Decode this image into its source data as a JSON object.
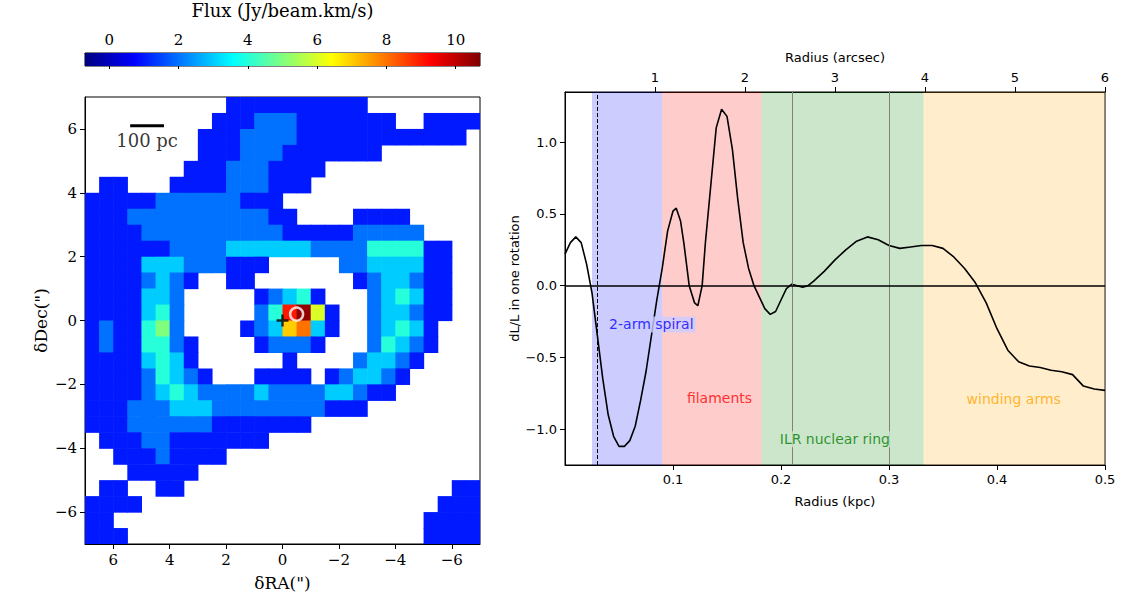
{
  "chart_data": [
    {
      "type": "heatmap",
      "x_label": "δRA(\")",
      "y_label": "δDec(\")",
      "xlim": [
        7,
        -7
      ],
      "ylim": [
        -7,
        7
      ],
      "xticks": [
        6,
        4,
        2,
        0,
        {
          "value": -2,
          "label": "−2"
        },
        {
          "value": -4,
          "label": "−4"
        },
        {
          "value": -6,
          "label": "−6"
        }
      ],
      "yticks": [
        {
          "value": -6,
          "label": "−6"
        },
        {
          "value": -4,
          "label": "−4"
        },
        {
          "value": -2,
          "label": "−2"
        },
        0,
        2,
        4,
        6
      ],
      "colorbar": {
        "label": "Flux (Jy/beam.km/s)",
        "range": [
          -0.7,
          10.7
        ],
        "ticks": [
          0,
          2,
          4,
          6,
          8,
          10
        ]
      },
      "x": [
        6.75,
        6.25,
        5.75,
        5.25,
        4.75,
        4.25,
        3.75,
        3.25,
        2.75,
        2.25,
        1.75,
        1.25,
        0.75,
        0.25,
        -0.25,
        -0.75,
        -1.25,
        -1.75,
        -2.25,
        -2.75,
        -3.25,
        -3.75,
        -4.25,
        -4.75,
        -5.25,
        -5.75,
        -6.25,
        -6.75
      ],
      "y": [
        6.75,
        6.25,
        5.75,
        5.25,
        4.75,
        4.25,
        3.75,
        3.25,
        2.75,
        2.25,
        1.75,
        1.25,
        0.75,
        0.25,
        -0.25,
        -0.75,
        -1.25,
        -1.75,
        -2.25,
        -2.75,
        -3.25,
        -3.75,
        -4.25,
        -4.75,
        -5.25,
        -5.75,
        -6.25,
        -6.75
      ],
      "cells": [
        [
          null,
          null,
          null,
          null,
          null,
          null,
          null,
          null,
          null,
          null,
          1,
          1,
          1,
          1,
          1,
          1,
          1,
          1,
          1,
          1,
          null,
          null,
          null,
          null,
          null,
          null,
          null,
          null
        ],
        [
          null,
          null,
          null,
          null,
          null,
          null,
          null,
          null,
          null,
          1,
          1,
          1,
          2,
          2,
          2,
          1,
          1,
          1,
          1,
          1,
          1,
          1,
          null,
          null,
          1,
          1,
          1,
          1
        ],
        [
          null,
          null,
          null,
          null,
          null,
          null,
          null,
          null,
          1,
          1,
          1,
          2,
          2,
          2,
          2,
          1,
          1,
          1,
          1,
          1,
          1,
          1,
          1,
          1,
          1,
          1,
          1,
          null
        ],
        [
          null,
          null,
          null,
          null,
          null,
          null,
          null,
          null,
          1,
          1,
          1,
          2,
          2,
          2,
          1,
          1,
          1,
          1,
          1,
          1,
          1,
          null,
          null,
          null,
          null,
          null,
          null,
          null
        ],
        [
          null,
          null,
          null,
          null,
          null,
          null,
          null,
          1,
          1,
          1,
          2,
          2,
          2,
          1,
          1,
          1,
          1,
          null,
          null,
          null,
          null,
          null,
          null,
          null,
          null,
          null,
          null,
          null
        ],
        [
          null,
          1,
          1,
          null,
          null,
          null,
          1,
          1,
          1,
          1,
          2,
          2,
          2,
          1,
          1,
          1,
          null,
          null,
          null,
          null,
          null,
          null,
          null,
          null,
          null,
          null,
          null,
          null
        ],
        [
          1,
          1,
          1,
          1,
          1,
          2,
          2,
          2,
          2,
          2,
          2,
          1,
          1,
          1,
          null,
          null,
          null,
          null,
          null,
          null,
          null,
          null,
          null,
          null,
          null,
          null,
          null,
          null
        ],
        [
          1,
          1,
          1,
          2,
          2,
          2,
          2,
          2,
          2,
          2,
          2,
          2,
          2,
          1,
          1,
          null,
          null,
          null,
          null,
          1,
          1,
          1,
          1,
          null,
          null,
          null,
          null,
          null
        ],
        [
          1,
          1,
          1,
          1,
          2,
          2,
          2,
          2,
          2,
          2,
          2,
          2,
          2,
          2,
          1,
          1,
          1,
          1,
          1,
          2,
          2,
          2,
          2,
          2,
          null,
          null,
          null,
          null
        ],
        [
          1,
          1,
          1,
          1,
          1,
          1,
          2,
          2,
          2,
          2,
          3,
          3,
          3,
          3,
          3,
          3,
          2,
          2,
          2,
          2,
          4,
          4,
          4,
          4,
          1,
          1,
          null,
          null
        ],
        [
          1,
          1,
          1,
          1,
          3,
          3,
          3,
          2,
          2,
          2,
          1,
          1,
          1,
          null,
          null,
          null,
          null,
          null,
          2,
          2,
          3,
          3,
          3,
          3,
          1,
          1,
          null,
          null
        ],
        [
          1,
          1,
          1,
          1,
          2,
          3,
          2,
          1,
          null,
          null,
          1,
          1,
          null,
          null,
          null,
          null,
          null,
          null,
          null,
          1,
          2,
          3,
          3,
          2,
          1,
          1,
          null,
          null
        ],
        [
          1,
          1,
          1,
          1,
          3,
          3,
          2,
          null,
          null,
          null,
          null,
          null,
          1,
          2,
          3,
          4,
          1,
          null,
          null,
          null,
          2,
          3,
          4,
          3,
          1,
          1,
          null,
          null
        ],
        [
          1,
          1,
          1,
          1,
          3,
          4,
          2,
          null,
          null,
          null,
          null,
          null,
          2,
          4,
          9,
          10.5,
          6,
          1,
          null,
          null,
          2,
          3,
          3,
          2,
          1,
          1,
          null,
          null
        ],
        [
          1,
          2,
          1,
          1,
          4,
          5,
          2,
          null,
          null,
          null,
          null,
          1,
          2,
          3,
          7,
          8,
          3,
          1,
          null,
          null,
          2,
          3,
          4,
          3,
          1,
          null,
          null,
          null
        ],
        [
          1,
          2,
          1,
          1,
          4,
          4,
          2,
          1,
          null,
          null,
          null,
          null,
          1,
          2,
          2,
          2,
          1,
          null,
          null,
          null,
          2,
          4,
          3,
          2,
          1,
          null,
          null,
          null
        ],
        [
          1,
          1,
          1,
          1,
          3,
          4,
          3,
          1,
          null,
          null,
          null,
          null,
          null,
          null,
          1,
          null,
          null,
          null,
          null,
          2,
          3,
          3,
          2,
          1,
          null,
          null,
          null,
          null
        ],
        [
          1,
          1,
          1,
          1,
          2,
          4,
          3,
          2,
          1,
          null,
          null,
          null,
          1,
          1,
          1,
          1,
          null,
          1,
          2,
          3,
          3,
          2,
          1,
          null,
          null,
          null,
          null,
          null
        ],
        [
          1,
          1,
          1,
          1,
          2,
          3,
          4,
          3,
          2,
          2,
          2,
          2,
          3,
          2,
          2,
          2,
          2,
          3,
          3,
          2,
          1,
          1,
          null,
          null,
          null,
          null,
          null,
          null
        ],
        [
          1,
          1,
          1,
          2,
          2,
          2,
          3,
          3,
          3,
          2,
          2,
          2,
          2,
          2,
          2,
          2,
          2,
          1,
          1,
          1,
          null,
          null,
          null,
          null,
          null,
          null,
          null,
          null
        ],
        [
          1,
          1,
          1,
          2,
          2,
          2,
          2,
          2,
          2,
          1,
          1,
          1,
          1,
          1,
          1,
          1,
          null,
          null,
          null,
          null,
          null,
          null,
          null,
          null,
          null,
          null,
          null,
          null
        ],
        [
          null,
          1,
          1,
          1,
          2,
          2,
          1,
          1,
          1,
          1,
          1,
          1,
          1,
          null,
          null,
          null,
          null,
          null,
          null,
          null,
          null,
          null,
          null,
          null,
          null,
          null,
          null,
          null
        ],
        [
          null,
          null,
          1,
          1,
          1,
          2,
          1,
          1,
          1,
          1,
          null,
          null,
          null,
          null,
          null,
          null,
          null,
          null,
          null,
          null,
          null,
          null,
          null,
          null,
          null,
          null,
          null,
          null
        ],
        [
          null,
          null,
          null,
          1,
          1,
          1,
          1,
          1,
          null,
          null,
          null,
          null,
          null,
          null,
          null,
          null,
          null,
          null,
          null,
          null,
          null,
          null,
          null,
          null,
          null,
          null,
          null,
          null
        ],
        [
          null,
          1,
          1,
          null,
          null,
          1,
          1,
          null,
          null,
          null,
          null,
          null,
          null,
          null,
          null,
          null,
          null,
          null,
          null,
          null,
          null,
          null,
          null,
          null,
          null,
          null,
          1,
          1
        ],
        [
          1,
          1,
          1,
          1,
          null,
          null,
          null,
          null,
          null,
          null,
          null,
          null,
          null,
          null,
          null,
          null,
          null,
          null,
          null,
          null,
          null,
          null,
          null,
          null,
          null,
          1,
          1,
          1
        ],
        [
          1,
          1,
          null,
          null,
          null,
          null,
          null,
          null,
          null,
          null,
          null,
          null,
          null,
          null,
          null,
          null,
          null,
          null,
          null,
          null,
          null,
          null,
          null,
          null,
          1,
          1,
          1,
          1
        ],
        [
          1,
          1,
          1,
          null,
          null,
          null,
          null,
          null,
          null,
          null,
          null,
          null,
          null,
          null,
          null,
          null,
          null,
          null,
          null,
          null,
          null,
          null,
          null,
          null,
          1,
          1,
          1,
          1
        ]
      ],
      "overlays": [
        {
          "type": "scatter",
          "x": [
            0
          ],
          "y": [
            0
          ],
          "marker": "cross",
          "color": "#000000"
        },
        {
          "type": "scatter",
          "x": [
            -0.5
          ],
          "y": [
            0.2
          ],
          "marker": "circle",
          "color": "#ffffff"
        }
      ],
      "scale_bar": {
        "label": "100 pc",
        "x": [
          5.4,
          4.2
        ],
        "y": 6.1,
        "color": "#000000"
      }
    },
    {
      "type": "line",
      "x_label": "Radius (kpc)",
      "x2_label": "Radius (arcsec)",
      "y_label": "dL/L in one rotation",
      "xlim": [
        0,
        0.5
      ],
      "xticks": [
        0.1,
        0.2,
        0.3,
        0.4,
        0.5
      ],
      "x2lim": [
        0,
        6
      ],
      "x2ticks": [
        1,
        2,
        3,
        4,
        5,
        6
      ],
      "ylim": [
        -1.25,
        1.35
      ],
      "yticks": [
        {
          "value": -1.0,
          "label": "−1.0"
        },
        {
          "value": -0.5,
          "label": "−0.5"
        },
        {
          "value": 0,
          "label": "0.0"
        },
        {
          "value": 0.5,
          "label": "0.5"
        },
        {
          "value": 1.0,
          "label": "1.0"
        }
      ],
      "color": "#000000",
      "x": [
        0,
        0.005,
        0.01,
        0.015,
        0.02,
        0.025,
        0.03,
        0.035,
        0.04,
        0.045,
        0.05,
        0.055,
        0.06,
        0.065,
        0.07,
        0.075,
        0.08,
        0.085,
        0.09,
        0.095,
        0.1,
        0.103,
        0.107,
        0.11,
        0.115,
        0.12,
        0.123,
        0.127,
        0.13,
        0.135,
        0.14,
        0.145,
        0.15,
        0.155,
        0.16,
        0.165,
        0.17,
        0.175,
        0.18,
        0.185,
        0.19,
        0.195,
        0.2,
        0.205,
        0.21,
        0.215,
        0.22,
        0.225,
        0.23,
        0.24,
        0.25,
        0.26,
        0.27,
        0.28,
        0.29,
        0.3,
        0.31,
        0.32,
        0.33,
        0.34,
        0.35,
        0.36,
        0.37,
        0.38,
        0.39,
        0.4,
        0.41,
        0.42,
        0.43,
        0.44,
        0.45,
        0.46,
        0.47,
        0.475,
        0.48,
        0.49,
        0.5
      ],
      "values": [
        0.22,
        0.3,
        0.34,
        0.3,
        0.15,
        -0.05,
        -0.35,
        -0.65,
        -0.9,
        -1.05,
        -1.12,
        -1.12,
        -1.08,
        -0.98,
        -0.8,
        -0.6,
        -0.35,
        -0.1,
        0.12,
        0.38,
        0.52,
        0.54,
        0.45,
        0.3,
        0.0,
        -0.12,
        -0.14,
        0.0,
        0.3,
        0.7,
        1.1,
        1.23,
        1.18,
        0.95,
        0.6,
        0.3,
        0.12,
        0.0,
        -0.08,
        -0.16,
        -0.2,
        -0.18,
        -0.1,
        -0.02,
        0.01,
        0.0,
        -0.01,
        0.0,
        0.03,
        0.1,
        0.18,
        0.25,
        0.31,
        0.34,
        0.32,
        0.28,
        0.26,
        0.27,
        0.28,
        0.28,
        0.26,
        0.2,
        0.12,
        0.02,
        -0.12,
        -0.3,
        -0.45,
        -0.53,
        -0.56,
        -0.57,
        -0.59,
        -0.6,
        -0.62,
        -0.66,
        -0.7,
        -0.72,
        -0.73
      ],
      "regions": [
        {
          "label": "2-arm spiral",
          "range": [
            0.025,
            0.09
          ],
          "color": "#0000ff",
          "label_at": [
            0.039,
            -0.27
          ]
        },
        {
          "label": "filaments",
          "range": [
            0.09,
            0.182
          ],
          "color": "#ff0000",
          "label_at": [
            0.111,
            -0.78
          ]
        },
        {
          "label": "ILR nuclear ring",
          "range": [
            0.182,
            0.332
          ],
          "color": "#008000",
          "label_at": [
            0.197,
            -1.07
          ]
        },
        {
          "label": "winding arms",
          "range": [
            0.332,
            0.5
          ],
          "color": "#ffa500",
          "label_at": [
            0.37,
            -0.79
          ]
        }
      ],
      "vlines": [
        {
          "x": 0.025,
          "line_style": "dashed",
          "color": "#000000"
        },
        {
          "x": 0.208,
          "line_style": "solid",
          "color": "#808080"
        },
        {
          "x": 0.3,
          "line_style": "solid",
          "color": "#808080"
        }
      ],
      "hlines": [
        {
          "y": 0,
          "line_style": "solid",
          "color": "#000000"
        }
      ]
    }
  ]
}
